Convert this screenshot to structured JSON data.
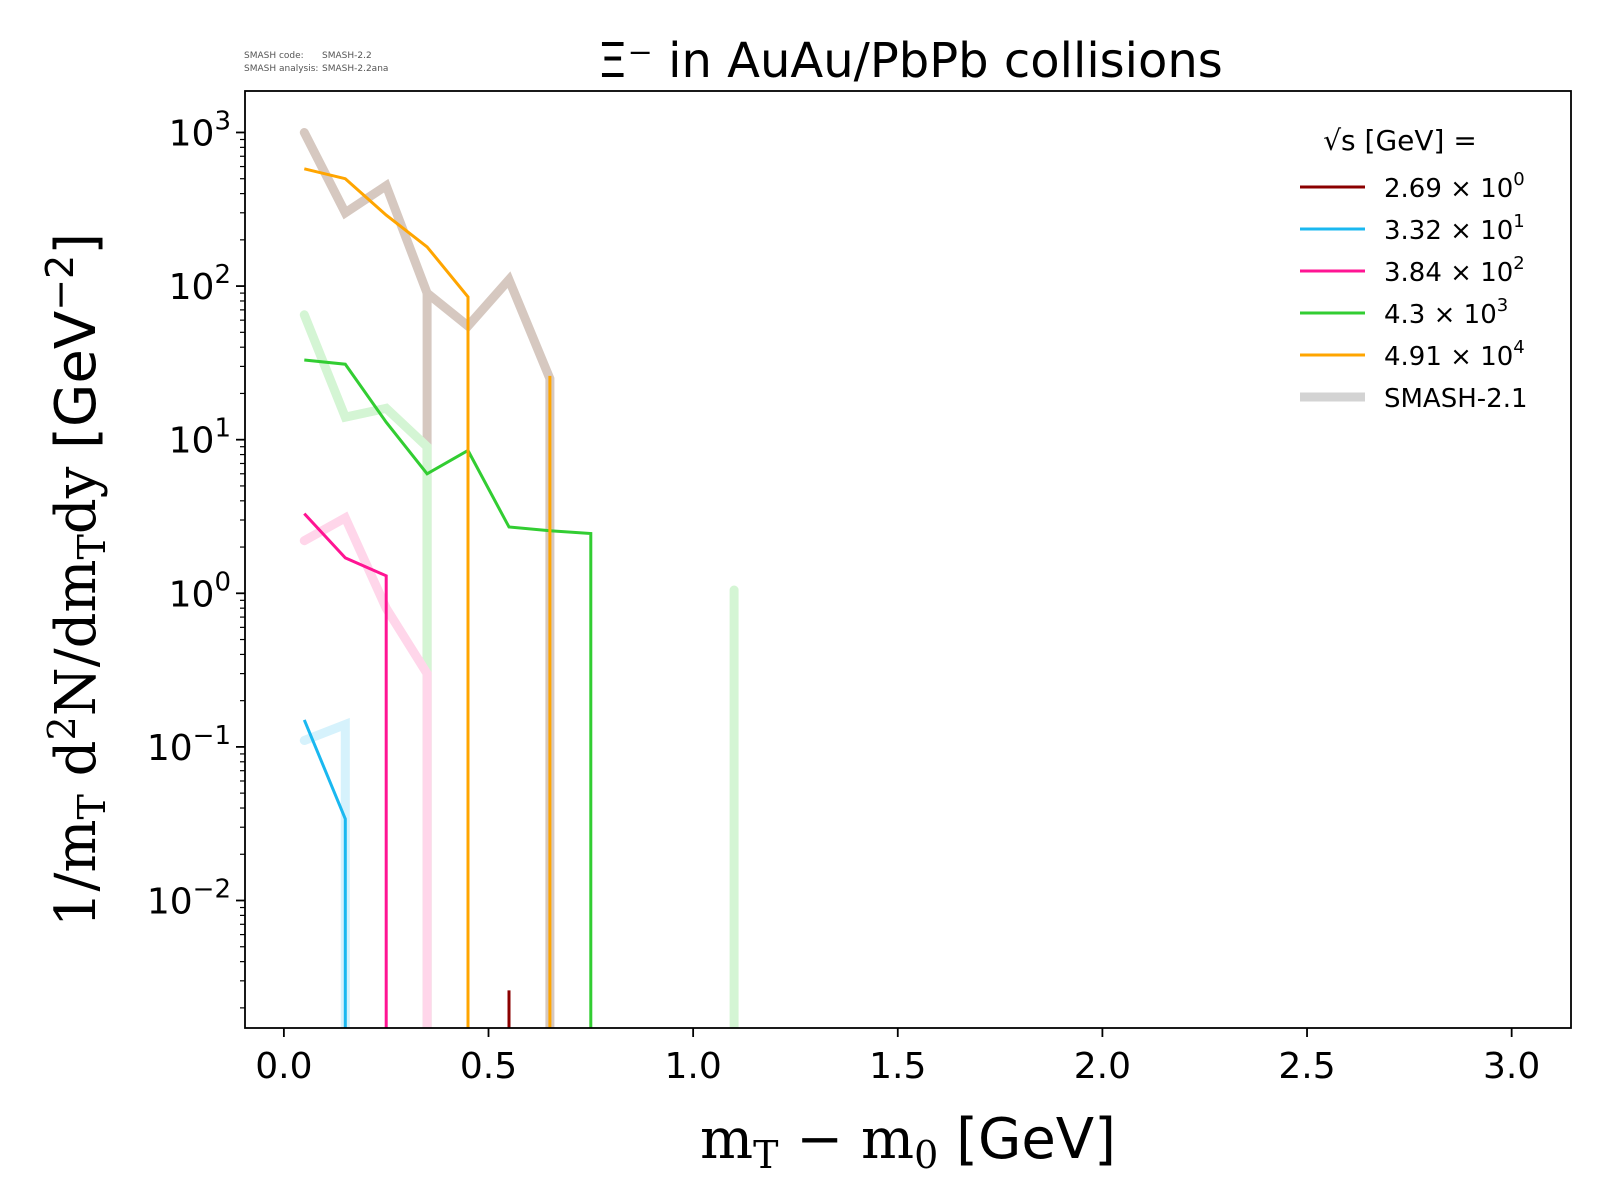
{
  "chart_data": {
    "type": "line",
    "title": "Ξ⁻ in AuAu/PbPb collisions",
    "watermark": {
      "code_label": "SMASH code:",
      "code_value": "SMASH-2.2",
      "analysis_label": "SMASH analysis:",
      "analysis_value": "SMASH-2.2ana"
    },
    "xlabel": "m_T − m_0 [GeV]",
    "ylabel": "1/m_T d²N/dm_T dy [GeV⁻²]",
    "xlim": [
      -0.095,
      3.145
    ],
    "ylim_log10": [
      -2.83,
      3.27
    ],
    "y_scale": "log",
    "x_ticks": [
      "0.0",
      "0.5",
      "1.0",
      "1.5",
      "2.0",
      "2.5",
      "3.0"
    ],
    "y_ticks": [
      {
        "base": "10",
        "exp": "3"
      },
      {
        "base": "10",
        "exp": "2"
      },
      {
        "base": "10",
        "exp": "1"
      },
      {
        "base": "10",
        "exp": "0"
      },
      {
        "base": "10",
        "exp": "−1"
      },
      {
        "base": "10",
        "exp": "−2"
      }
    ],
    "legend": {
      "title": "√s [GeV] =",
      "placement": "top-right",
      "entries": [
        {
          "mant": "2.69",
          "exp": "0",
          "color": "#8b0000"
        },
        {
          "mant": "3.32",
          "exp": "1",
          "color": "#1ab8f0"
        },
        {
          "mant": "3.84",
          "exp": "2",
          "color": "#ff1493"
        },
        {
          "mant": "4.3",
          "exp": "3",
          "color": "#32cd32"
        },
        {
          "mant": "4.91",
          "exp": "4",
          "color": "#ffa500"
        }
      ],
      "reference_label": "SMASH-2.1",
      "reference_color": "#d3d3d3"
    },
    "series": [
      {
        "kind": "current",
        "color": "#8b0000",
        "points": [
          [
            0.55,
            0.0026
          ],
          [
            0.55,
            0.0001
          ]
        ]
      },
      {
        "kind": "current",
        "color": "#1ab8f0",
        "points": [
          [
            0.05,
            0.15
          ],
          [
            0.15,
            0.034
          ],
          [
            0.15,
            0.0001
          ]
        ]
      },
      {
        "kind": "current",
        "color": "#ff1493",
        "points": [
          [
            0.05,
            3.3
          ],
          [
            0.15,
            1.7
          ],
          [
            0.25,
            1.3
          ],
          [
            0.25,
            0.0001
          ]
        ]
      },
      {
        "kind": "current",
        "color": "#32cd32",
        "points": [
          [
            0.05,
            33
          ],
          [
            0.15,
            31
          ],
          [
            0.25,
            13
          ],
          [
            0.35,
            6
          ],
          [
            0.45,
            8.5
          ],
          [
            0.55,
            2.7
          ],
          [
            0.65,
            2.55
          ],
          [
            0.75,
            2.45
          ],
          [
            0.75,
            0.0001
          ]
        ]
      },
      {
        "kind": "current",
        "color": "#ffa500",
        "points": [
          [
            0.05,
            580
          ],
          [
            0.15,
            500
          ],
          [
            0.25,
            290
          ],
          [
            0.35,
            180
          ],
          [
            0.45,
            85
          ],
          [
            0.45,
            0.0001
          ]
        ]
      },
      {
        "kind": "current",
        "color": "#ffa500",
        "points": [
          [
            0.65,
            26
          ],
          [
            0.65,
            0.0001
          ]
        ]
      },
      {
        "kind": "reference",
        "color": "#d6c8c0",
        "points": [
          [
            0.05,
            1000
          ],
          [
            0.15,
            300
          ],
          [
            0.25,
            450
          ],
          [
            0.35,
            90
          ],
          [
            0.45,
            55
          ],
          [
            0.55,
            110
          ],
          [
            0.65,
            25
          ],
          [
            0.65,
            0.0001
          ]
        ]
      },
      {
        "kind": "reference",
        "color": "#d6c8c0",
        "points": [
          [
            0.35,
            90
          ],
          [
            0.35,
            0.0001
          ]
        ]
      },
      {
        "kind": "reference",
        "color": "#d4f5d4",
        "points": [
          [
            0.05,
            65
          ],
          [
            0.15,
            14
          ],
          [
            0.25,
            16
          ],
          [
            0.35,
            9
          ],
          [
            0.35,
            0.0001
          ]
        ]
      },
      {
        "kind": "reference",
        "color": "#d4f5d4",
        "points": [
          [
            1.1,
            1.05
          ],
          [
            1.1,
            0.0001
          ]
        ]
      },
      {
        "kind": "reference",
        "color": "#ffd6ea",
        "points": [
          [
            0.05,
            2.2
          ],
          [
            0.15,
            3.1
          ],
          [
            0.25,
            0.8
          ],
          [
            0.35,
            0.3
          ],
          [
            0.35,
            0.0001
          ]
        ]
      },
      {
        "kind": "reference",
        "color": "#d6f2fc",
        "points": [
          [
            0.05,
            0.11
          ],
          [
            0.15,
            0.14
          ],
          [
            0.15,
            0.0001
          ]
        ]
      }
    ]
  }
}
